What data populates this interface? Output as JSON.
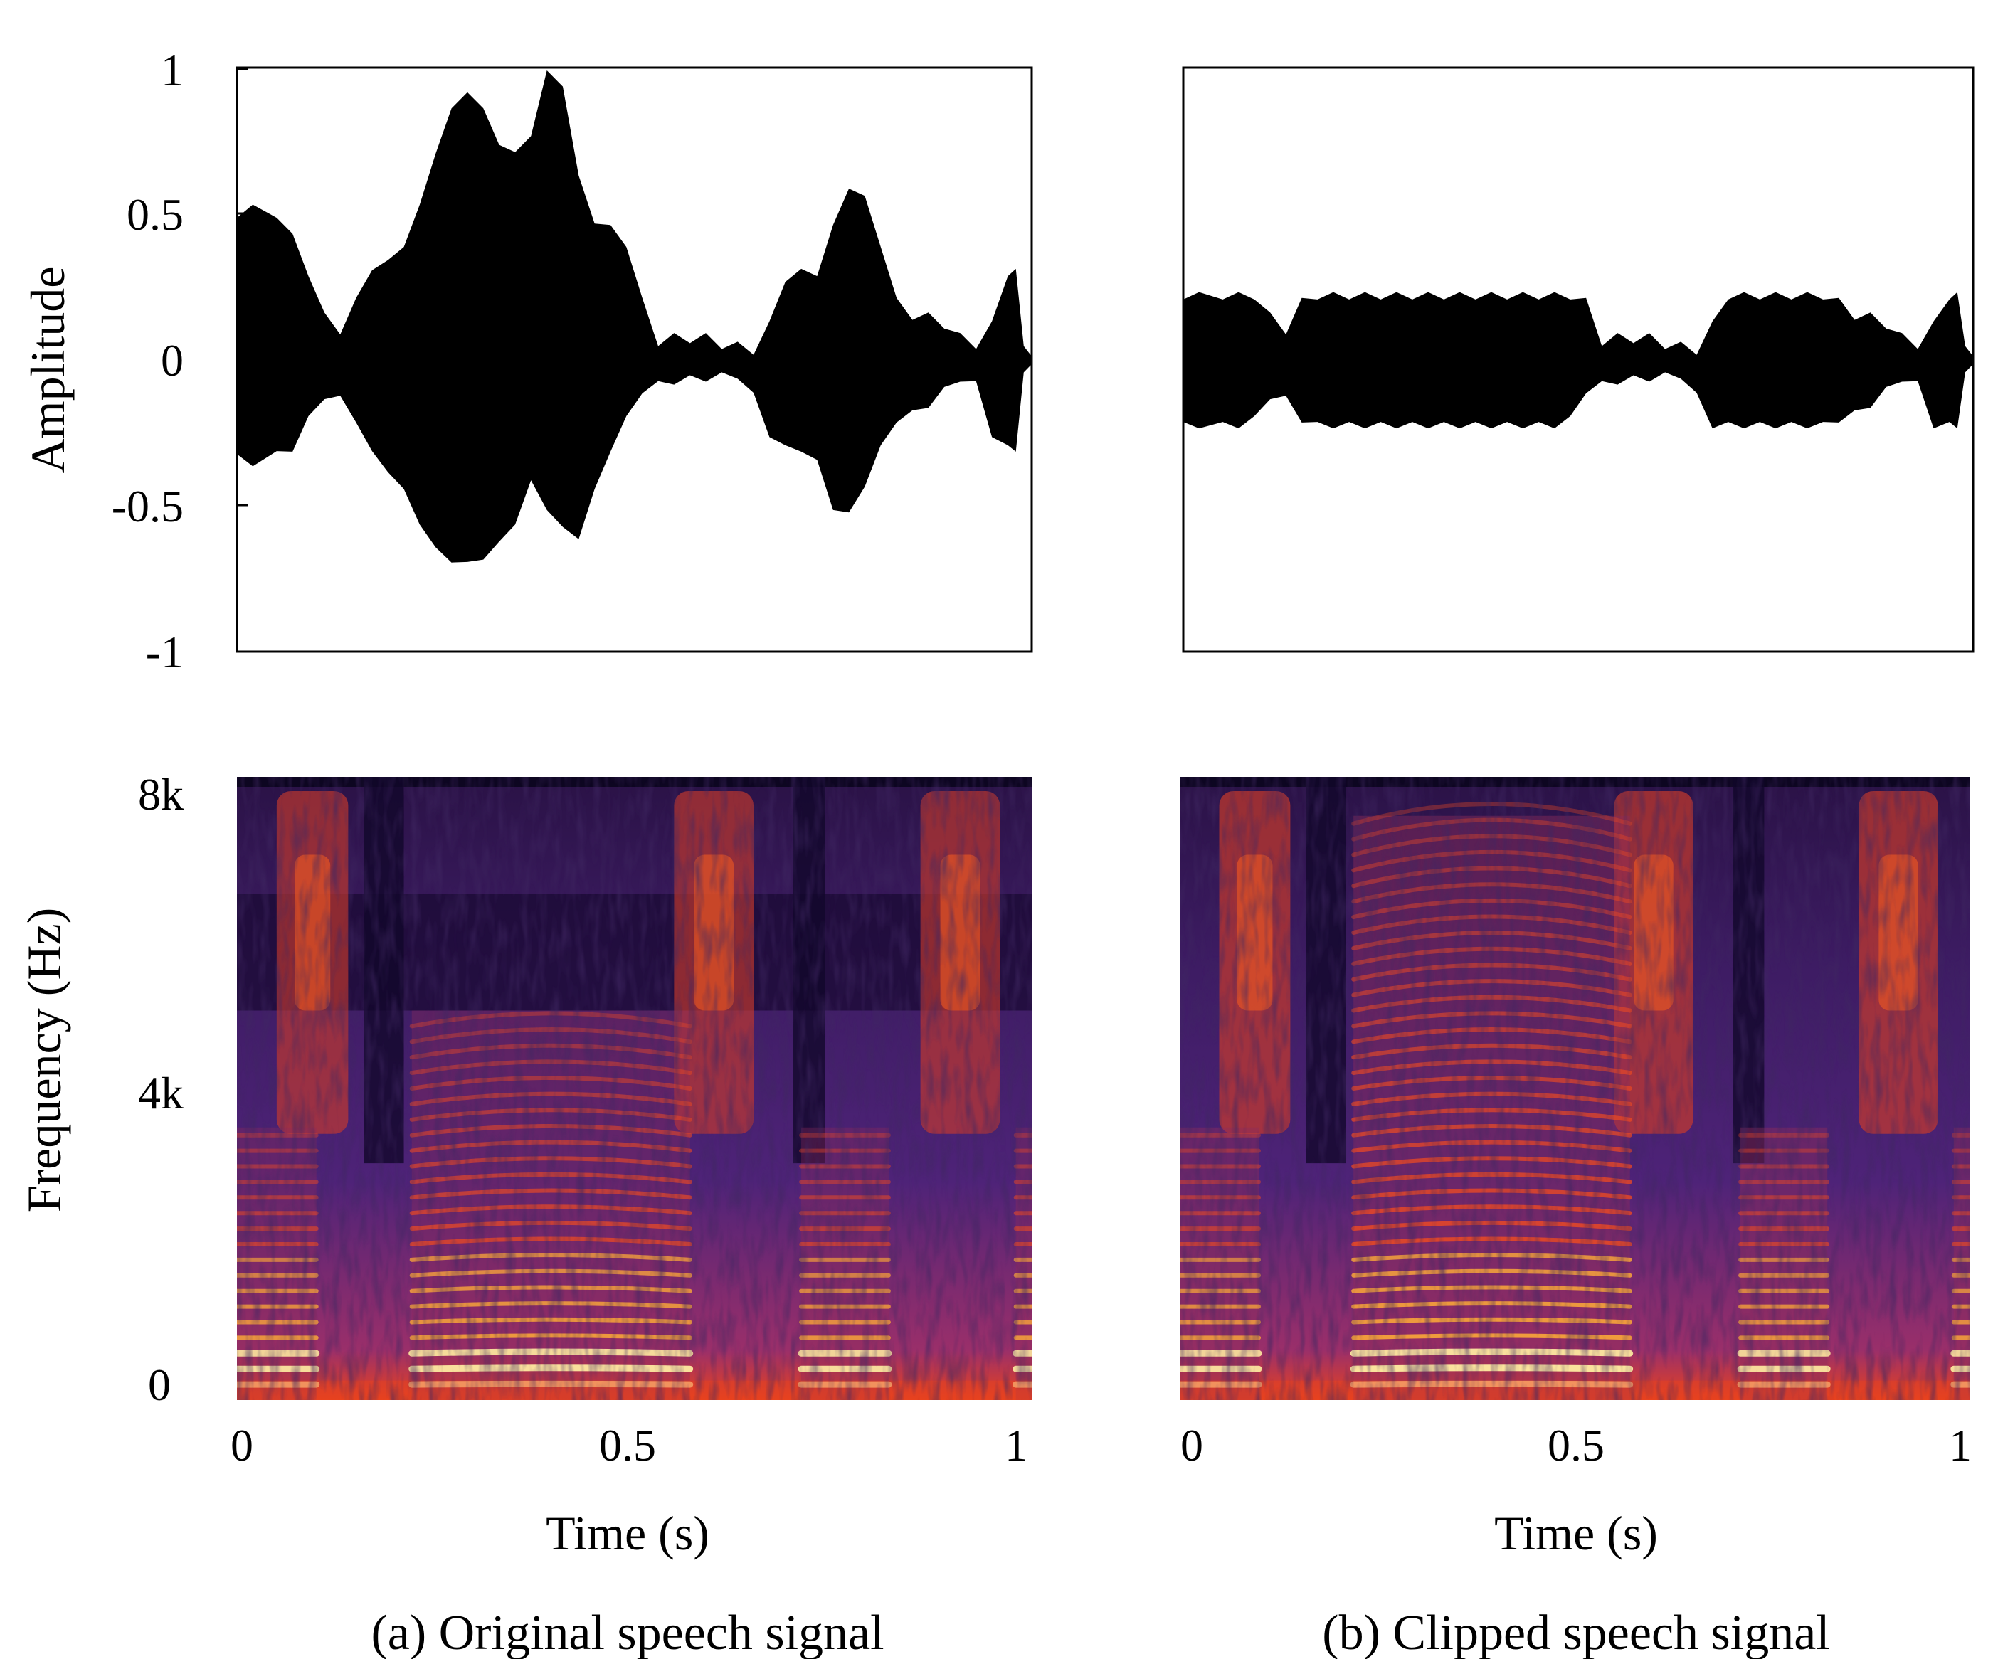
{
  "colors": {
    "waveform": "#000000",
    "spectrogram_low": "#0d0621",
    "spectrogram_mid": "#5a2a86",
    "spectrogram_high": "#e8421e",
    "spectrogram_peak": "#fde9a0"
  },
  "chart_data": [
    {
      "id": "a-wave",
      "type": "area",
      "panel": "(a) Original speech signal",
      "xlabel": "",
      "ylabel": "Amplitude",
      "xlim": [
        0,
        1
      ],
      "ylim": [
        -1,
        1
      ],
      "yticks": [
        "1",
        "0.5",
        "0",
        "-0.5",
        "-1"
      ],
      "envelope": {
        "x": [
          0,
          0.02,
          0.05,
          0.07,
          0.09,
          0.11,
          0.13,
          0.15,
          0.17,
          0.19,
          0.21,
          0.23,
          0.25,
          0.27,
          0.29,
          0.31,
          0.33,
          0.35,
          0.37,
          0.39,
          0.41,
          0.43,
          0.45,
          0.47,
          0.49,
          0.51,
          0.53,
          0.55,
          0.57,
          0.59,
          0.61,
          0.63,
          0.65,
          0.67,
          0.69,
          0.71,
          0.73,
          0.75,
          0.77,
          0.79,
          0.81,
          0.83,
          0.85,
          0.87,
          0.89,
          0.91,
          0.93,
          0.95,
          0.97,
          0.98,
          0.99,
          1.0
        ],
        "upper": [
          0.5,
          0.52,
          0.5,
          0.42,
          0.3,
          0.15,
          0.1,
          0.2,
          0.32,
          0.33,
          0.4,
          0.52,
          0.72,
          0.85,
          0.93,
          0.85,
          0.75,
          0.7,
          0.78,
          0.98,
          0.95,
          0.62,
          0.48,
          0.45,
          0.4,
          0.2,
          0.06,
          0.08,
          0.07,
          0.08,
          0.05,
          0.05,
          0.03,
          0.12,
          0.28,
          0.3,
          0.3,
          0.45,
          0.6,
          0.55,
          0.4,
          0.2,
          0.15,
          0.15,
          0.12,
          0.08,
          0.05,
          0.12,
          0.3,
          0.3,
          0.06,
          0.0
        ],
        "lower": [
          -0.33,
          -0.35,
          -0.32,
          -0.3,
          -0.2,
          -0.12,
          -0.13,
          -0.2,
          -0.32,
          -0.37,
          -0.45,
          -0.55,
          -0.65,
          -0.68,
          -0.7,
          -0.67,
          -0.63,
          -0.55,
          -0.42,
          -0.5,
          -0.58,
          -0.6,
          -0.45,
          -0.3,
          -0.2,
          -0.1,
          -0.08,
          -0.07,
          -0.06,
          -0.06,
          -0.05,
          -0.05,
          -0.12,
          -0.25,
          -0.3,
          -0.3,
          -0.35,
          -0.5,
          -0.53,
          -0.42,
          -0.3,
          -0.2,
          -0.18,
          -0.15,
          -0.1,
          -0.06,
          -0.08,
          -0.25,
          -0.3,
          -0.3,
          -0.05,
          0.0
        ]
      }
    },
    {
      "id": "b-wave",
      "type": "area",
      "panel": "(b) Clipped speech signal",
      "xlabel": "",
      "ylabel": "",
      "xlim": [
        0,
        1
      ],
      "ylim": [
        -1,
        1
      ],
      "clip_level": 0.22,
      "envelope": {
        "x": [
          0,
          0.02,
          0.05,
          0.07,
          0.09,
          0.11,
          0.13,
          0.15,
          0.17,
          0.19,
          0.21,
          0.23,
          0.25,
          0.27,
          0.29,
          0.31,
          0.33,
          0.35,
          0.37,
          0.39,
          0.41,
          0.43,
          0.45,
          0.47,
          0.49,
          0.51,
          0.53,
          0.55,
          0.57,
          0.59,
          0.61,
          0.63,
          0.65,
          0.67,
          0.69,
          0.71,
          0.73,
          0.75,
          0.77,
          0.79,
          0.81,
          0.83,
          0.85,
          0.87,
          0.89,
          0.91,
          0.93,
          0.95,
          0.97,
          0.98,
          0.99,
          1.0
        ],
        "upper": [
          0.22,
          0.22,
          0.22,
          0.22,
          0.22,
          0.15,
          0.1,
          0.2,
          0.22,
          0.22,
          0.22,
          0.22,
          0.22,
          0.22,
          0.22,
          0.22,
          0.22,
          0.22,
          0.22,
          0.22,
          0.22,
          0.22,
          0.22,
          0.22,
          0.22,
          0.2,
          0.06,
          0.08,
          0.07,
          0.08,
          0.05,
          0.05,
          0.03,
          0.12,
          0.22,
          0.22,
          0.22,
          0.22,
          0.22,
          0.22,
          0.22,
          0.2,
          0.15,
          0.15,
          0.12,
          0.08,
          0.05,
          0.12,
          0.22,
          0.22,
          0.06,
          0.0
        ],
        "lower": [
          -0.22,
          -0.22,
          -0.22,
          -0.22,
          -0.2,
          -0.12,
          -0.13,
          -0.2,
          -0.22,
          -0.22,
          -0.22,
          -0.22,
          -0.22,
          -0.22,
          -0.22,
          -0.22,
          -0.22,
          -0.22,
          -0.22,
          -0.22,
          -0.22,
          -0.22,
          -0.22,
          -0.22,
          -0.2,
          -0.1,
          -0.08,
          -0.07,
          -0.06,
          -0.06,
          -0.05,
          -0.05,
          -0.12,
          -0.22,
          -0.22,
          -0.22,
          -0.22,
          -0.22,
          -0.22,
          -0.22,
          -0.22,
          -0.2,
          -0.18,
          -0.15,
          -0.1,
          -0.06,
          -0.08,
          -0.22,
          -0.22,
          -0.22,
          -0.05,
          0.0
        ]
      }
    },
    {
      "id": "a-spec",
      "type": "heatmap",
      "panel": "(a) Original speech signal",
      "xlabel": "Time (s)",
      "ylabel": "Frequency (Hz)",
      "xlim": [
        0,
        1
      ],
      "ylim": [
        0,
        8000
      ],
      "xticks": [
        "0",
        "0.5",
        "1"
      ],
      "yticks": [
        "8k",
        "4k",
        "0"
      ],
      "voiced_segments": [
        [
          0.0,
          0.1
        ],
        [
          0.22,
          0.57
        ],
        [
          0.71,
          0.82
        ],
        [
          0.98,
          1.0
        ]
      ],
      "fricative_segments": [
        [
          0.05,
          0.14
        ],
        [
          0.55,
          0.65
        ],
        [
          0.86,
          0.96
        ]
      ],
      "low_energy_band_khz": [
        5.0,
        6.5
      ]
    },
    {
      "id": "b-spec",
      "type": "heatmap",
      "panel": "(b) Clipped speech signal",
      "xlabel": "Time (s)",
      "ylabel": "",
      "xlim": [
        0,
        1
      ],
      "ylim": [
        0,
        8000
      ],
      "xticks": [
        "0",
        "0.5",
        "1"
      ],
      "voiced_segments": [
        [
          0.0,
          0.1
        ],
        [
          0.22,
          0.57
        ],
        [
          0.71,
          0.82
        ],
        [
          0.98,
          1.0
        ]
      ],
      "fricative_segments": [
        [
          0.05,
          0.14
        ],
        [
          0.55,
          0.65
        ],
        [
          0.86,
          0.96
        ]
      ]
    }
  ],
  "captions": {
    "a": "(a) Original speech signal",
    "b": "(b) Clipped speech signal"
  },
  "labels": {
    "amplitude": "Amplitude",
    "frequency": "Frequency (Hz)",
    "time_a": "Time (s)",
    "time_b": "Time (s)"
  },
  "ticks": {
    "amp": [
      "1",
      "0.5",
      "0",
      "-0.5",
      "-1"
    ],
    "freq": [
      "8k",
      "4k",
      "0"
    ],
    "time_a": [
      "0",
      "0.5",
      "1"
    ],
    "time_b": [
      "0",
      "0.5",
      "1"
    ]
  }
}
